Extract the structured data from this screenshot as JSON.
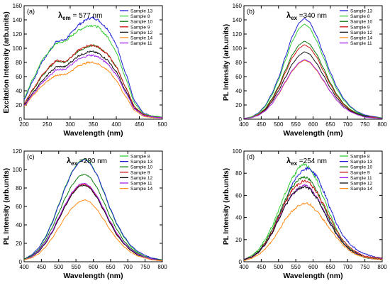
{
  "figure": {
    "panels_count": 4
  },
  "chart_data": [
    {
      "type": "line",
      "panel_label": "(a)",
      "annotation": {
        "prefix": "λ",
        "subscript": "em",
        "text": " = 577 nm"
      },
      "xlabel": "Wavelength (nm)",
      "ylabel": "Excitation Intensity (arb.units)",
      "xlim": [
        200,
        500
      ],
      "ylim": [
        0,
        160
      ],
      "xticks": [
        200,
        250,
        300,
        350,
        400,
        450,
        500
      ],
      "yticks": [
        0,
        20,
        40,
        60,
        80,
        100,
        120,
        140,
        160
      ],
      "legend_position": "top-right",
      "noise": 2.5,
      "x": [
        200,
        220,
        240,
        260,
        270,
        280,
        290,
        300,
        320,
        340,
        350,
        360,
        380,
        400,
        420,
        440,
        460,
        480,
        500
      ],
      "series": [
        {
          "name": "Sample 13",
          "color": "#1f1fd6",
          "values": [
            28,
            55,
            82,
            100,
            110,
            111,
            112,
            120,
            134,
            142,
            143,
            140,
            128,
            105,
            65,
            25,
            8,
            4,
            3
          ]
        },
        {
          "name": "Sample 8",
          "color": "#33cc33",
          "values": [
            30,
            58,
            84,
            100,
            107,
            108,
            110,
            116,
            126,
            132,
            132,
            130,
            117,
            95,
            58,
            22,
            7,
            4,
            3
          ]
        },
        {
          "name": "Sample 10",
          "color": "#0b7a0b",
          "values": [
            22,
            42,
            62,
            76,
            82,
            81,
            80,
            86,
            97,
            103,
            104,
            102,
            92,
            74,
            45,
            17,
            6,
            3,
            2
          ]
        },
        {
          "name": "Sample 9",
          "color": "#cc1111",
          "values": [
            22,
            43,
            63,
            77,
            83,
            82,
            81,
            87,
            98,
            104,
            104,
            102,
            92,
            74,
            45,
            17,
            6,
            3,
            2
          ]
        },
        {
          "name": "Sample 12",
          "color": "#111111",
          "values": [
            20,
            38,
            55,
            68,
            74,
            74,
            74,
            80,
            90,
            95,
            95,
            93,
            84,
            67,
            40,
            15,
            5,
            3,
            2
          ]
        },
        {
          "name": "Sample 14",
          "color": "#ff8c1a",
          "values": [
            18,
            34,
            48,
            58,
            62,
            63,
            63,
            67,
            76,
            80,
            80,
            78,
            70,
            55,
            32,
            12,
            4,
            2,
            2
          ]
        },
        {
          "name": "Sample 11",
          "color": "#a020f0",
          "values": [
            19,
            36,
            52,
            64,
            70,
            70,
            70,
            76,
            85,
            90,
            90,
            88,
            79,
            63,
            38,
            14,
            5,
            3,
            2
          ]
        }
      ]
    },
    {
      "type": "line",
      "panel_label": "(b)",
      "annotation": {
        "prefix": "λ",
        "subscript": "ex",
        "text": " =340 nm"
      },
      "xlabel": "Wavelength (nm)",
      "ylabel": "PL Intensity (arb.units)",
      "xlim": [
        400,
        800
      ],
      "ylim": [
        0,
        160
      ],
      "xticks": [
        400,
        450,
        500,
        550,
        600,
        650,
        700,
        750,
        800
      ],
      "yticks": [
        0,
        20,
        40,
        60,
        80,
        100,
        120,
        140,
        160
      ],
      "legend_position": "top-right",
      "noise": 0,
      "x": [
        400,
        420,
        440,
        460,
        480,
        500,
        520,
        540,
        560,
        575,
        590,
        610,
        630,
        650,
        670,
        690,
        710,
        730,
        750,
        770,
        800
      ],
      "series": [
        {
          "name": "Sample 13",
          "color": "#1f1fd6",
          "values": [
            1,
            3,
            8,
            18,
            35,
            58,
            88,
            117,
            136,
            142,
            137,
            118,
            92,
            66,
            44,
            28,
            17,
            10,
            6,
            4,
            2
          ]
        },
        {
          "name": "Sample 8",
          "color": "#33cc33",
          "values": [
            1,
            3,
            7,
            17,
            33,
            55,
            83,
            110,
            128,
            134,
            129,
            111,
            87,
            62,
            41,
            26,
            16,
            9,
            5,
            3,
            2
          ]
        },
        {
          "name": "Sample 10",
          "color": "#0b7a0b",
          "values": [
            1,
            2,
            6,
            14,
            28,
            46,
            69,
            91,
            105,
            110,
            106,
            92,
            72,
            51,
            34,
            21,
            13,
            8,
            5,
            3,
            1
          ]
        },
        {
          "name": "Sample 9",
          "color": "#cc1111",
          "values": [
            1,
            2,
            6,
            13,
            26,
            44,
            66,
            87,
            100,
            105,
            101,
            88,
            68,
            49,
            32,
            20,
            12,
            7,
            4,
            3,
            1
          ]
        },
        {
          "name": "Sample 12",
          "color": "#111111",
          "values": [
            1,
            2,
            5,
            12,
            24,
            40,
            59,
            78,
            90,
            95,
            92,
            79,
            62,
            44,
            29,
            18,
            11,
            7,
            4,
            2,
            1
          ]
        },
        {
          "name": "Sample 14",
          "color": "#ff8c1a",
          "values": [
            1,
            2,
            5,
            11,
            21,
            35,
            52,
            68,
            79,
            83,
            80,
            69,
            54,
            39,
            26,
            16,
            10,
            6,
            3,
            2,
            1
          ]
        },
        {
          "name": "Sample 11",
          "color": "#a020f0",
          "values": [
            1,
            2,
            5,
            11,
            21,
            36,
            53,
            69,
            80,
            84,
            81,
            70,
            55,
            39,
            26,
            16,
            10,
            6,
            3,
            2,
            1
          ]
        }
      ]
    },
    {
      "type": "line",
      "panel_label": "(c)",
      "annotation": {
        "prefix": "λ",
        "subscript": "ex",
        "text": " =280 nm"
      },
      "xlabel": "Wavelength (nm)",
      "ylabel": "PL Intensity (arb.units)",
      "xlim": [
        400,
        800
      ],
      "ylim": [
        0,
        120
      ],
      "xticks": [
        400,
        450,
        500,
        550,
        600,
        650,
        700,
        750,
        800
      ],
      "yticks": [
        0,
        20,
        40,
        60,
        80,
        100,
        120
      ],
      "legend_position": "top-right",
      "noise": 0.8,
      "x": [
        400,
        420,
        440,
        460,
        480,
        500,
        520,
        540,
        560,
        575,
        590,
        610,
        630,
        650,
        670,
        690,
        710,
        730,
        750,
        770,
        800
      ],
      "series": [
        {
          "name": "Sample 8",
          "color": "#33cc33",
          "values": [
            3,
            7,
            14,
            26,
            42,
            62,
            82,
            99,
            109,
            112,
            108,
            95,
            76,
            56,
            39,
            26,
            16,
            10,
            6,
            4,
            2
          ]
        },
        {
          "name": "Sample 13",
          "color": "#1f1fd6",
          "values": [
            3,
            7,
            14,
            25,
            41,
            61,
            81,
            98,
            108,
            111,
            107,
            95,
            77,
            57,
            40,
            27,
            17,
            11,
            7,
            4,
            2
          ]
        },
        {
          "name": "Sample 10",
          "color": "#0b7a0b",
          "values": [
            3,
            6,
            12,
            22,
            36,
            53,
            70,
            84,
            93,
            95,
            92,
            81,
            65,
            48,
            34,
            22,
            14,
            9,
            5,
            3,
            2
          ]
        },
        {
          "name": "Sample 9",
          "color": "#cc1111",
          "values": [
            2,
            5,
            11,
            20,
            32,
            47,
            62,
            75,
            83,
            84,
            81,
            71,
            57,
            42,
            29,
            19,
            12,
            8,
            5,
            3,
            1
          ]
        },
        {
          "name": "Sample 12",
          "color": "#111111",
          "values": [
            2,
            5,
            10,
            19,
            31,
            46,
            61,
            74,
            82,
            83,
            80,
            70,
            56,
            41,
            28,
            19,
            12,
            7,
            5,
            3,
            1
          ]
        },
        {
          "name": "Sample 11",
          "color": "#a020f0",
          "values": [
            2,
            5,
            11,
            20,
            32,
            48,
            63,
            76,
            84,
            85,
            82,
            72,
            58,
            43,
            30,
            20,
            13,
            8,
            5,
            3,
            1
          ]
        },
        {
          "name": "Sample 14",
          "color": "#ff8c1a",
          "values": [
            2,
            4,
            8,
            15,
            25,
            37,
            49,
            59,
            65,
            67,
            65,
            57,
            46,
            34,
            24,
            16,
            10,
            6,
            4,
            2,
            1
          ]
        }
      ]
    },
    {
      "type": "line",
      "panel_label": "(d)",
      "annotation": {
        "prefix": "λ",
        "subscript": "ex",
        "text": " =254 nm"
      },
      "xlabel": "Wavelength (nm)",
      "ylabel": "PL Intensity (arb.units)",
      "xlim": [
        400,
        800
      ],
      "ylim": [
        0,
        100
      ],
      "xticks": [
        400,
        450,
        500,
        550,
        600,
        650,
        700,
        750,
        800
      ],
      "yticks": [
        0,
        20,
        40,
        60,
        80,
        100
      ],
      "legend_position": "top-right",
      "noise": 2.2,
      "x": [
        400,
        420,
        440,
        460,
        480,
        500,
        520,
        540,
        560,
        575,
        590,
        610,
        630,
        650,
        670,
        690,
        710,
        730,
        750,
        770,
        800
      ],
      "series": [
        {
          "name": "Sample 8",
          "color": "#33cc33",
          "values": [
            2,
            5,
            10,
            19,
            31,
            46,
            62,
            76,
            85,
            88,
            85,
            74,
            58,
            42,
            28,
            18,
            11,
            7,
            4,
            3,
            2
          ]
        },
        {
          "name": "Sample 13",
          "color": "#1f1fd6",
          "values": [
            2,
            4,
            8,
            15,
            26,
            40,
            55,
            70,
            80,
            84,
            84,
            78,
            64,
            48,
            33,
            22,
            15,
            10,
            7,
            5,
            3
          ]
        },
        {
          "name": "Sample 10",
          "color": "#0b7a0b",
          "values": [
            2,
            4,
            9,
            17,
            28,
            42,
            56,
            68,
            75,
            77,
            74,
            65,
            51,
            37,
            25,
            16,
            10,
            6,
            4,
            3,
            2
          ]
        },
        {
          "name": "Sample 9",
          "color": "#cc1111",
          "values": [
            2,
            4,
            8,
            16,
            26,
            40,
            54,
            65,
            71,
            73,
            71,
            63,
            52,
            39,
            27,
            18,
            12,
            8,
            5,
            4,
            3
          ]
        },
        {
          "name": "Sample 11",
          "color": "#a020f0",
          "values": [
            2,
            4,
            8,
            15,
            25,
            38,
            51,
            61,
            67,
            69,
            67,
            59,
            47,
            35,
            24,
            16,
            10,
            7,
            4,
            3,
            2
          ]
        },
        {
          "name": "Sample 12",
          "color": "#111111",
          "values": [
            2,
            4,
            8,
            15,
            25,
            38,
            51,
            61,
            66,
            68,
            66,
            58,
            46,
            34,
            24,
            16,
            10,
            7,
            4,
            3,
            2
          ]
        },
        {
          "name": "Sample 14",
          "color": "#ff8c1a",
          "values": [
            1,
            3,
            6,
            11,
            18,
            28,
            38,
            46,
            51,
            53,
            52,
            46,
            38,
            29,
            21,
            14,
            9,
            6,
            4,
            3,
            2
          ]
        }
      ]
    }
  ]
}
